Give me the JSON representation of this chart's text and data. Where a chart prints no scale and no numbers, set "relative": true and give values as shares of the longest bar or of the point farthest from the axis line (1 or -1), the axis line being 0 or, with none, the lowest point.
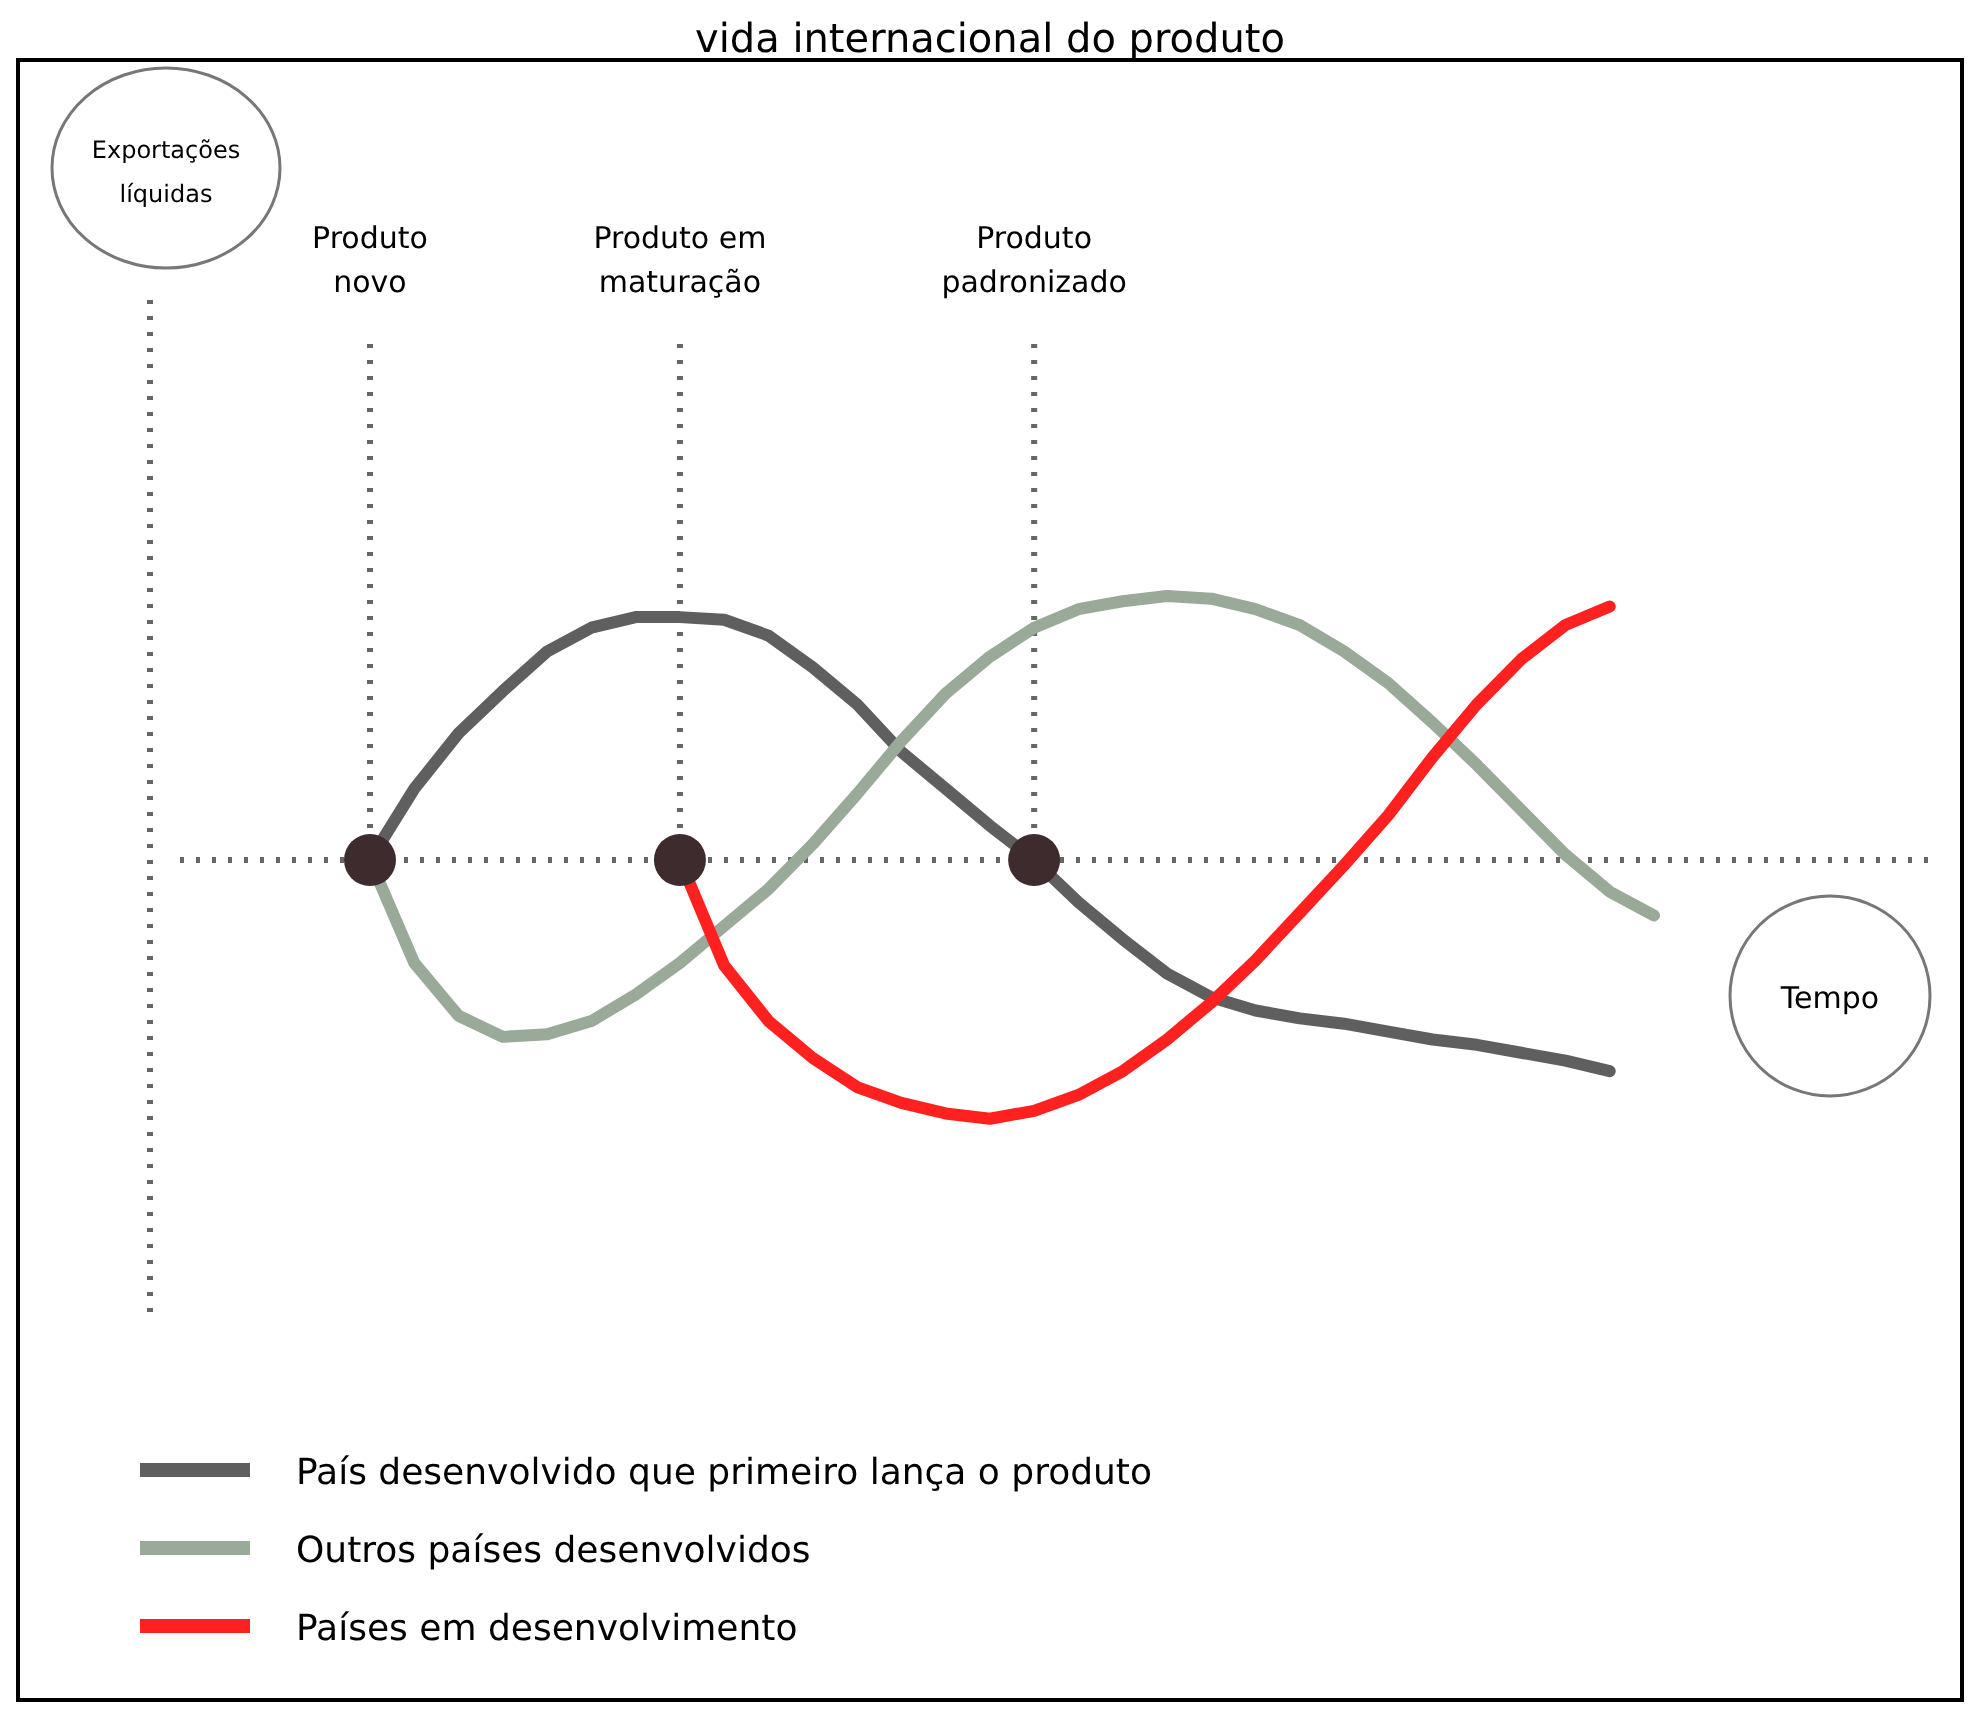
{
  "chart_data": {
    "type": "line",
    "title": "vida internacional do produto",
    "xlabel": "Tempo",
    "ylabel": "Exportações líquidas",
    "relative": true,
    "grid": "x",
    "legend": "bottom",
    "marker": "none",
    "line_style": "solid",
    "categories": [
      "Produto novo",
      null,
      null,
      null,
      null,
      null,
      null,
      "Produto em maturação",
      null,
      null,
      null,
      null,
      null,
      null,
      null,
      "Produto padronizado",
      null,
      null,
      null,
      null,
      null,
      null,
      null,
      null,
      null,
      null,
      null,
      null,
      null,
      null
    ],
    "series": [
      {
        "name": "País desenvolvido que primeiro lança o produto",
        "color": "#5f5f5f",
        "values": [
          0,
          0.27,
          0.48,
          0.64,
          0.79,
          0.88,
          0.92,
          0.92,
          0.91,
          0.85,
          0.73,
          0.59,
          0.41,
          0.27,
          0.13,
          0,
          -0.16,
          -0.3,
          -0.43,
          -0.52,
          -0.57,
          -0.6,
          -0.62,
          -0.65,
          -0.68,
          -0.7,
          -0.73,
          -0.76,
          -0.8,
          null
        ]
      },
      {
        "name": "Outros países desenvolvidos",
        "color": "#9aaa98",
        "values": [
          0,
          -0.39,
          -0.59,
          -0.67,
          -0.66,
          -0.61,
          -0.51,
          -0.39,
          -0.25,
          -0.11,
          0.06,
          0.25,
          0.45,
          0.63,
          0.77,
          0.88,
          0.95,
          0.98,
          1,
          0.99,
          0.95,
          0.89,
          0.79,
          0.67,
          0.52,
          0.36,
          0.19,
          0.02,
          -0.12,
          -0.21
        ]
      },
      {
        "name": "Países em desenvolvimento",
        "color": "#ff2020",
        "values": [
          null,
          null,
          null,
          null,
          null,
          null,
          null,
          0,
          -0.4,
          -0.61,
          -0.75,
          -0.86,
          -0.92,
          -0.96,
          -0.98,
          -0.95,
          -0.89,
          -0.8,
          -0.68,
          -0.54,
          -0.38,
          -0.2,
          -0.02,
          0.17,
          0.39,
          0.59,
          0.76,
          0.89,
          0.96,
          null
        ]
      }
    ]
  }
}
